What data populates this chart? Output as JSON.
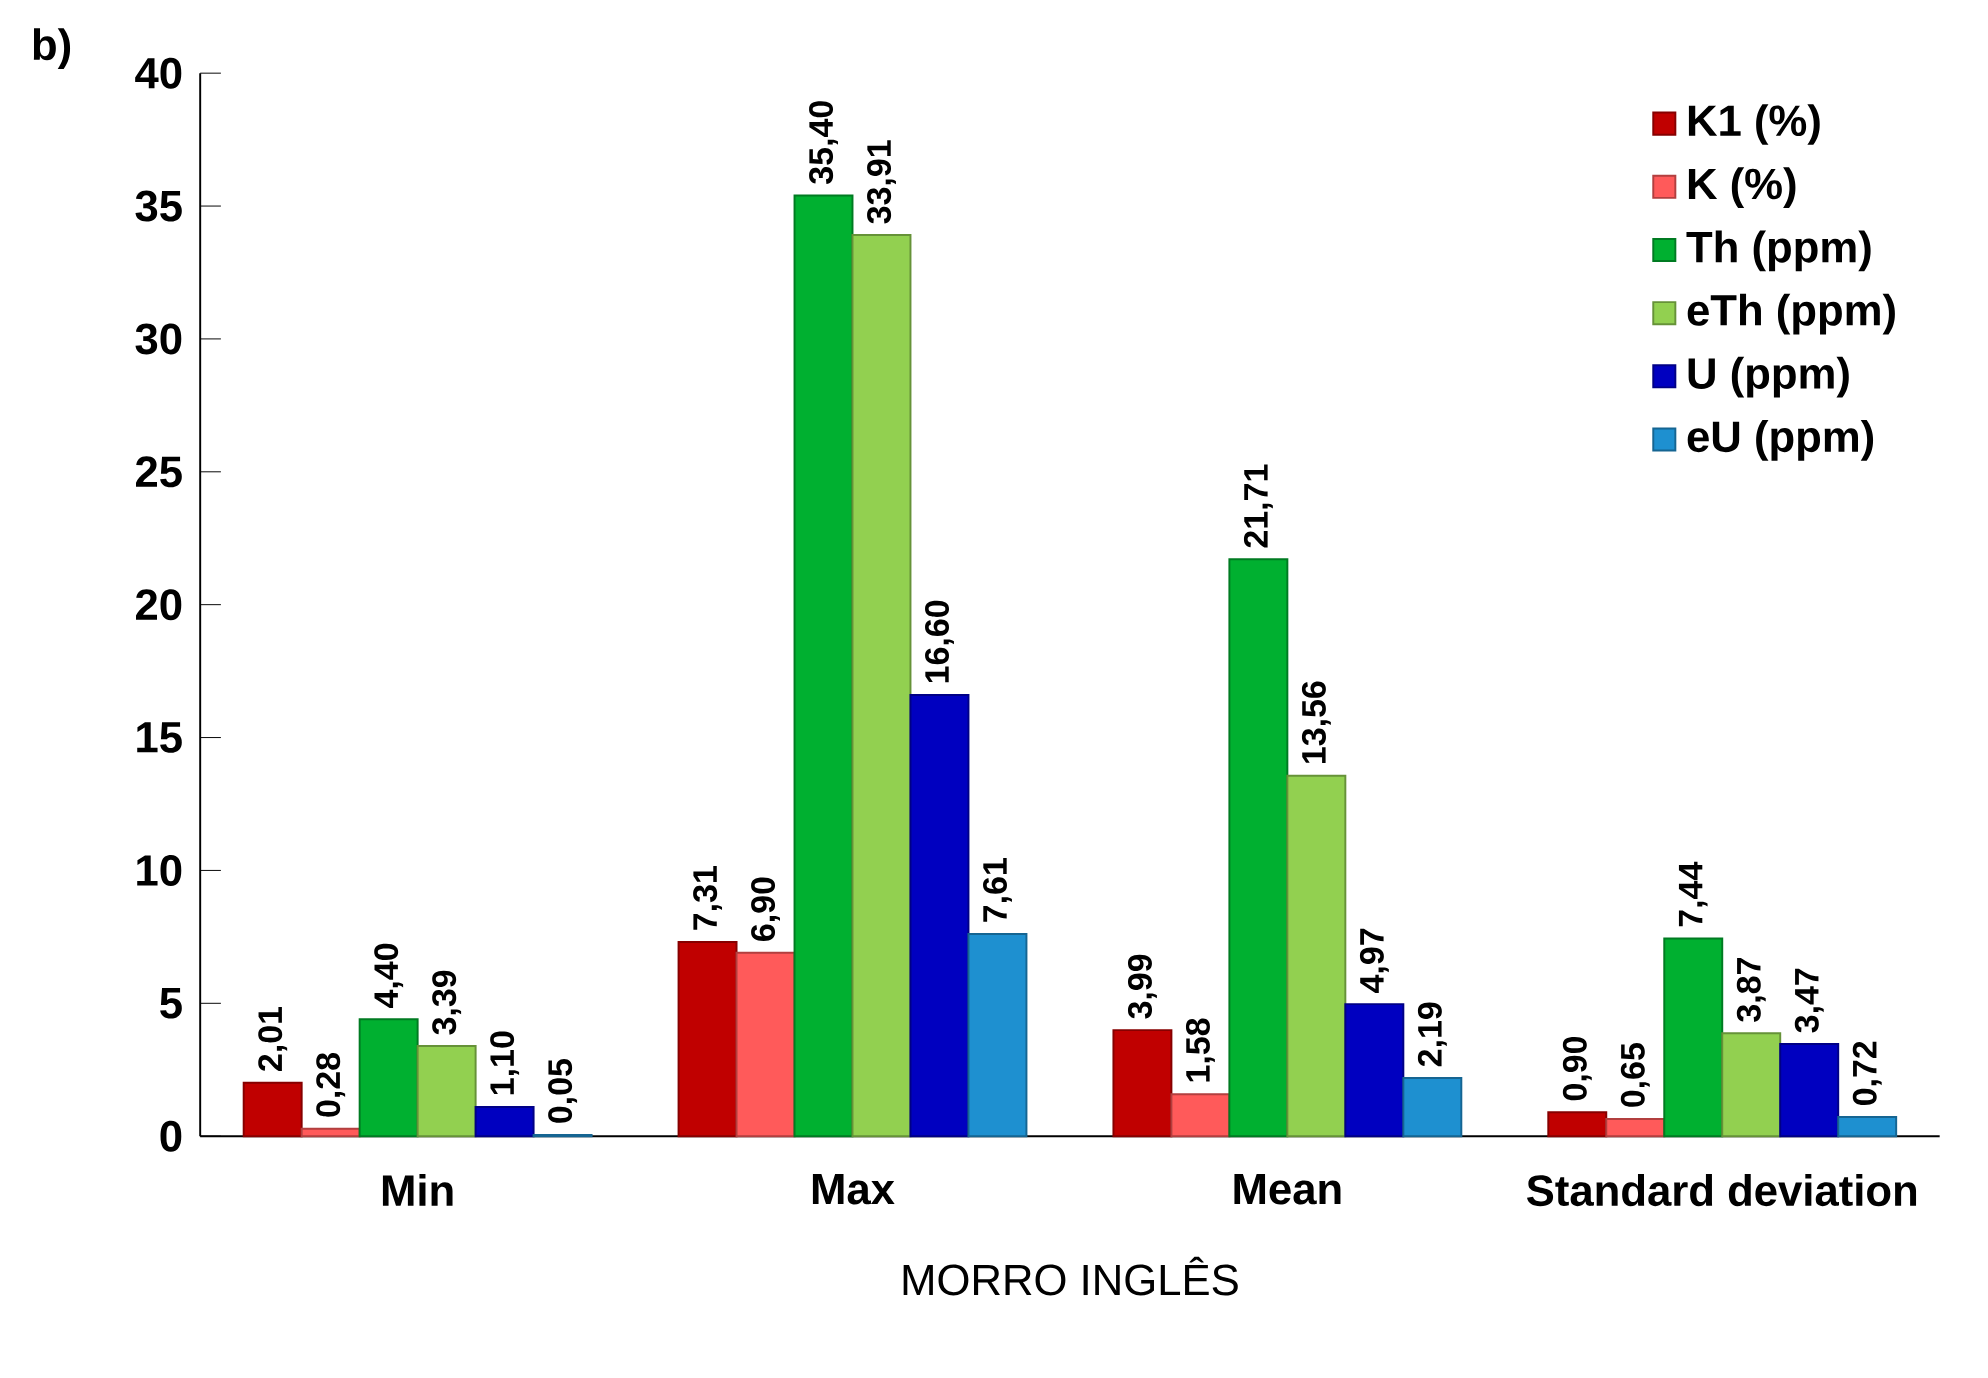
{
  "chart_data": {
    "type": "bar",
    "xlabel": "MORRO INGLÊS",
    "annotations": [
      "b)"
    ],
    "categories": [
      "Min",
      "Max",
      "Mean",
      "Standard deviation"
    ],
    "series": [
      {
        "name": "K1 (%)",
        "color": "#c00000",
        "values": [
          2.01,
          7.31,
          3.99,
          0.9
        ],
        "value_labels": [
          "2,01",
          "7,31",
          "3,99",
          "0,90"
        ]
      },
      {
        "name": "K (%)",
        "color": "#ff5a5a",
        "values": [
          0.28,
          6.9,
          1.58,
          0.65
        ],
        "value_labels": [
          "0,28",
          "6,90",
          "1,58",
          "0,65"
        ]
      },
      {
        "name": "Th (ppm)",
        "color": "#00b030",
        "values": [
          4.4,
          35.4,
          21.71,
          7.44
        ],
        "value_labels": [
          "4,40",
          "35,40",
          "21,71",
          "7,44"
        ]
      },
      {
        "name": "eTh (ppm)",
        "color": "#92d050",
        "values": [
          3.39,
          33.91,
          13.56,
          3.87
        ],
        "value_labels": [
          "3,39",
          "33,91",
          "13,56",
          "3,87"
        ]
      },
      {
        "name": "U (ppm)",
        "color": "#0000c0",
        "values": [
          1.1,
          16.6,
          4.97,
          3.47
        ],
        "value_labels": [
          "1,10",
          "16,60",
          "4,97",
          "3,47"
        ]
      },
      {
        "name": "eU (ppm)",
        "color": "#1e90d0",
        "values": [
          0.05,
          7.61,
          2.19,
          0.72
        ],
        "value_labels": [
          "0,05",
          "7,61",
          "2,19",
          "0,72"
        ]
      }
    ],
    "ylim": [
      0,
      40
    ],
    "yticks": [
      0,
      5,
      10,
      15,
      20,
      25,
      30,
      35,
      40
    ],
    "legend": "top right",
    "grid": false
  }
}
